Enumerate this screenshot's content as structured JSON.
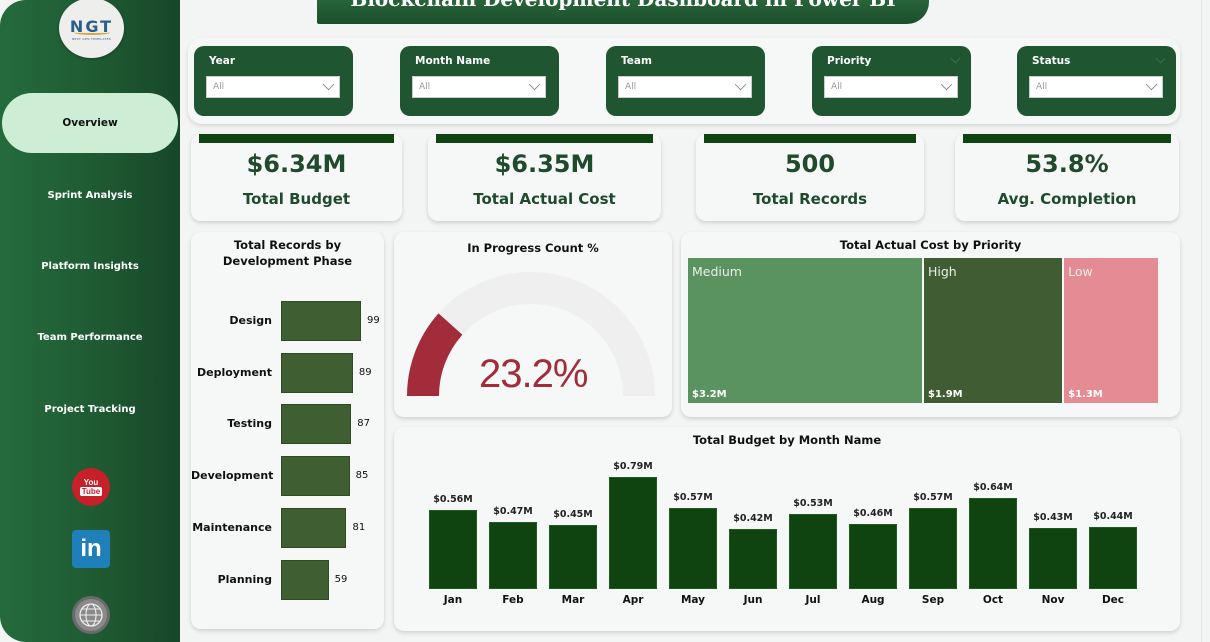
{
  "header": {
    "title": "Blockchain Development Dashboard in Power BI"
  },
  "logo": {
    "text": "NGT",
    "subtitle": "NEXT GEN TEMPLATES"
  },
  "sidebar": {
    "items": [
      {
        "label": "Overview",
        "active": true
      },
      {
        "label": "Sprint Analysis",
        "active": false
      },
      {
        "label": "Platform Insights",
        "active": false
      },
      {
        "label": "Team Performance",
        "active": false
      },
      {
        "label": "Project Tracking",
        "active": false
      }
    ],
    "social": [
      {
        "name": "youtube-icon",
        "top": "You",
        "bottom": "Tube"
      },
      {
        "name": "linkedin-icon",
        "text": "in"
      },
      {
        "name": "website-globe-icon",
        "text": "www"
      }
    ]
  },
  "filters": [
    {
      "label": "Year",
      "value": "All"
    },
    {
      "label": "Month Name",
      "value": "All"
    },
    {
      "label": "Team",
      "value": "All"
    },
    {
      "label": "Priority",
      "value": "All"
    },
    {
      "label": "Status",
      "value": "All"
    }
  ],
  "kpis": [
    {
      "value": "$6.34M",
      "label": "Total Budget"
    },
    {
      "value": "$6.35M",
      "label": "Total Actual Cost"
    },
    {
      "value": "500",
      "label": "Total Records"
    },
    {
      "value": "53.8%",
      "label": "Avg. Completion"
    }
  ],
  "colors": {
    "primary_green": "#1f5531",
    "kpi_bar": "#0f4410",
    "phase_bar": "#3f5e32",
    "gauge_fill": "#a32c3b",
    "treemap_medium": "#5a9360",
    "treemap_high": "#405c32",
    "treemap_low": "#e48b94"
  },
  "chart_data": [
    {
      "type": "bar",
      "orientation": "horizontal",
      "title": "Total Records by Development Phase",
      "categories": [
        "Design",
        "Deployment",
        "Testing",
        "Development",
        "Maintenance",
        "Planning"
      ],
      "values": [
        99,
        89,
        87,
        85,
        81,
        59
      ],
      "data_labels": [
        "99",
        "89",
        "87",
        "85",
        "81",
        "59"
      ]
    },
    {
      "type": "gauge",
      "title": "In Progress Count %",
      "value": 23.2,
      "min": 0,
      "max": 100,
      "display": "23.2%"
    },
    {
      "type": "treemap",
      "title": "Total Actual Cost by Priority",
      "categories": [
        "Medium",
        "High",
        "Low"
      ],
      "values": [
        3.2,
        1.9,
        1.3
      ],
      "data_labels": [
        "$3.2M",
        "$1.9M",
        "$1.3M"
      ],
      "unit": "$M"
    },
    {
      "type": "bar",
      "orientation": "vertical",
      "title": "Total Budget by Month Name",
      "categories": [
        "Jan",
        "Feb",
        "Mar",
        "Apr",
        "May",
        "Jun",
        "Jul",
        "Aug",
        "Sep",
        "Oct",
        "Nov",
        "Dec"
      ],
      "values": [
        0.56,
        0.47,
        0.45,
        0.79,
        0.57,
        0.42,
        0.53,
        0.46,
        0.57,
        0.64,
        0.43,
        0.44
      ],
      "data_labels": [
        "$0.56M",
        "$0.47M",
        "$0.45M",
        "$0.79M",
        "$0.57M",
        "$0.42M",
        "$0.53M",
        "$0.46M",
        "$0.57M",
        "$0.64M",
        "$0.43M",
        "$0.44M"
      ],
      "unit": "$M",
      "ylim": [
        0,
        0.85
      ]
    }
  ]
}
